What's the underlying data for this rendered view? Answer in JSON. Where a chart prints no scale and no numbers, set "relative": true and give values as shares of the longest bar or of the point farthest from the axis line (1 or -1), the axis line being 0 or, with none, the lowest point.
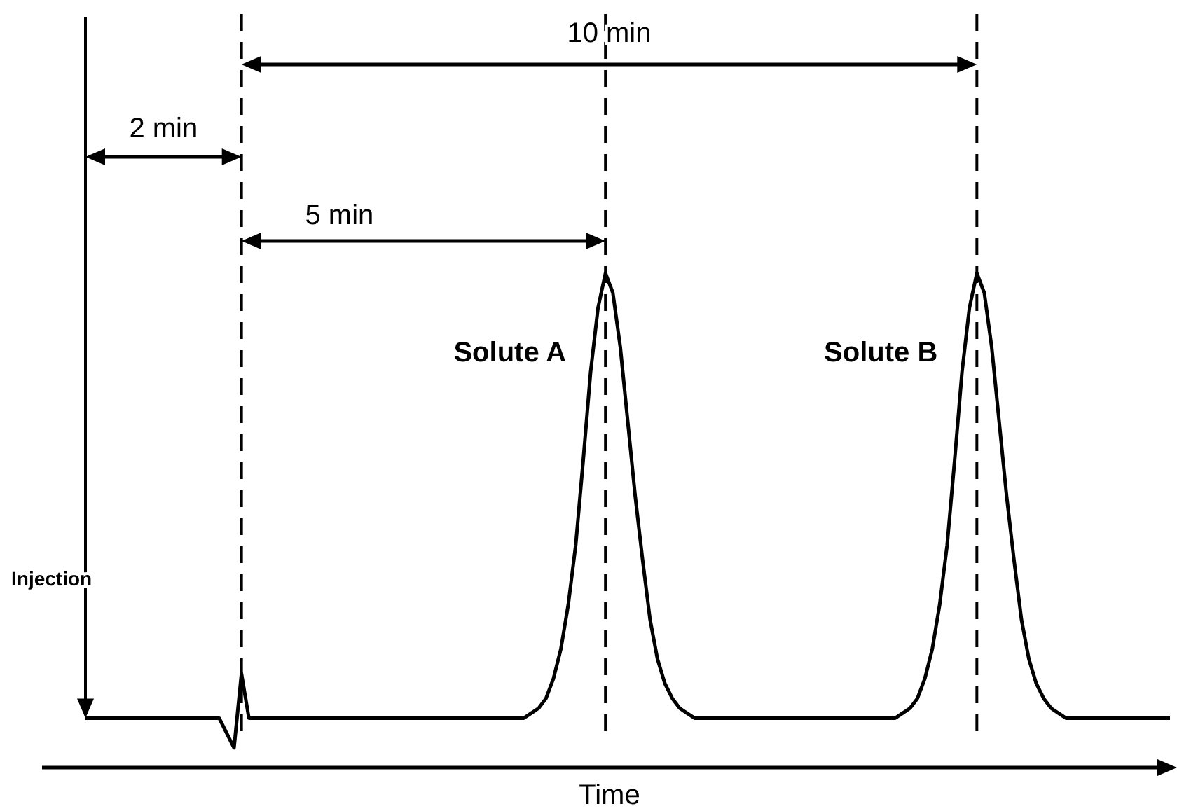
{
  "chart_data": {
    "type": "line",
    "relative": true,
    "xlabel": "Time",
    "annotations": [
      "Injection",
      "2 min",
      "5 min",
      "10 min",
      "Solute A",
      "Solute B"
    ],
    "categories": [
      null,
      null,
      null,
      null,
      null,
      null,
      null,
      null,
      null,
      null,
      null,
      null,
      null,
      null,
      null,
      null,
      null,
      null,
      null,
      null,
      null,
      null,
      null,
      null,
      null,
      null,
      null,
      null,
      null,
      null,
      null,
      null,
      null,
      null,
      null,
      null,
      null,
      null,
      null,
      null,
      null,
      null,
      null,
      null,
      null,
      null,
      null,
      null,
      null,
      null,
      null,
      null,
      null,
      null,
      null,
      null,
      null,
      null,
      null,
      null,
      null,
      null,
      null,
      null,
      null,
      null,
      null,
      null,
      null,
      null,
      null,
      null,
      null,
      null,
      null,
      null,
      null,
      null,
      null,
      null,
      null,
      null,
      null,
      null,
      null,
      null,
      null,
      null,
      null,
      null,
      null,
      null,
      null,
      null,
      null,
      null,
      null,
      null,
      null,
      null,
      null,
      null,
      null,
      null,
      null,
      null,
      null,
      null,
      null,
      null,
      null,
      null,
      null,
      null,
      null,
      null,
      null,
      null,
      null,
      null,
      null,
      null,
      null,
      null,
      null,
      null,
      null,
      null,
      null,
      null,
      null,
      null,
      null,
      null,
      null,
      null,
      null,
      null,
      null,
      null,
      null,
      null,
      null,
      null,
      null,
      null,
      null
    ],
    "series": [
      {
        "color": "#000000",
        "values": [
          0.1,
          0.1,
          0.1,
          0.1,
          0.1,
          0.1,
          0.1,
          0.1,
          0.1,
          0.1,
          0.1,
          0.1,
          0.1,
          0.1,
          0.1,
          0.1,
          0.1,
          0.1,
          0.1,
          0.07,
          0.04,
          0.19,
          0.1,
          0.1,
          0.1,
          0.1,
          0.1,
          0.1,
          0.1,
          0.1,
          0.1,
          0.1,
          0.1,
          0.1,
          0.1,
          0.1,
          0.1,
          0.1,
          0.1,
          0.1,
          0.1,
          0.1,
          0.1,
          0.1,
          0.1,
          0.1,
          0.1,
          0.1,
          0.1,
          0.1,
          0.1,
          0.1,
          0.1,
          0.1,
          0.1,
          0.1,
          0.1,
          0.1,
          0.1,
          0.1,
          0.11,
          0.12,
          0.14,
          0.18,
          0.24,
          0.33,
          0.45,
          0.62,
          0.8,
          0.93,
          1.0,
          0.96,
          0.85,
          0.7,
          0.55,
          0.42,
          0.3,
          0.22,
          0.17,
          0.14,
          0.12,
          0.11,
          0.1,
          0.1,
          0.1,
          0.1,
          0.1,
          0.1,
          0.1,
          0.1,
          0.1,
          0.1,
          0.1,
          0.1,
          0.1,
          0.1,
          0.1,
          0.1,
          0.1,
          0.1,
          0.1,
          0.1,
          0.1,
          0.1,
          0.1,
          0.1,
          0.1,
          0.1,
          0.1,
          0.1,
          0.11,
          0.12,
          0.14,
          0.18,
          0.24,
          0.33,
          0.45,
          0.62,
          0.8,
          0.93,
          1.0,
          0.96,
          0.85,
          0.7,
          0.55,
          0.42,
          0.3,
          0.22,
          0.17,
          0.14,
          0.12,
          0.11,
          0.1,
          0.1,
          0.1,
          0.1,
          0.1,
          0.1,
          0.1,
          0.1,
          0.1,
          0.1,
          0.1,
          0.1,
          0.1,
          0.1,
          0.1
        ]
      }
    ]
  }
}
